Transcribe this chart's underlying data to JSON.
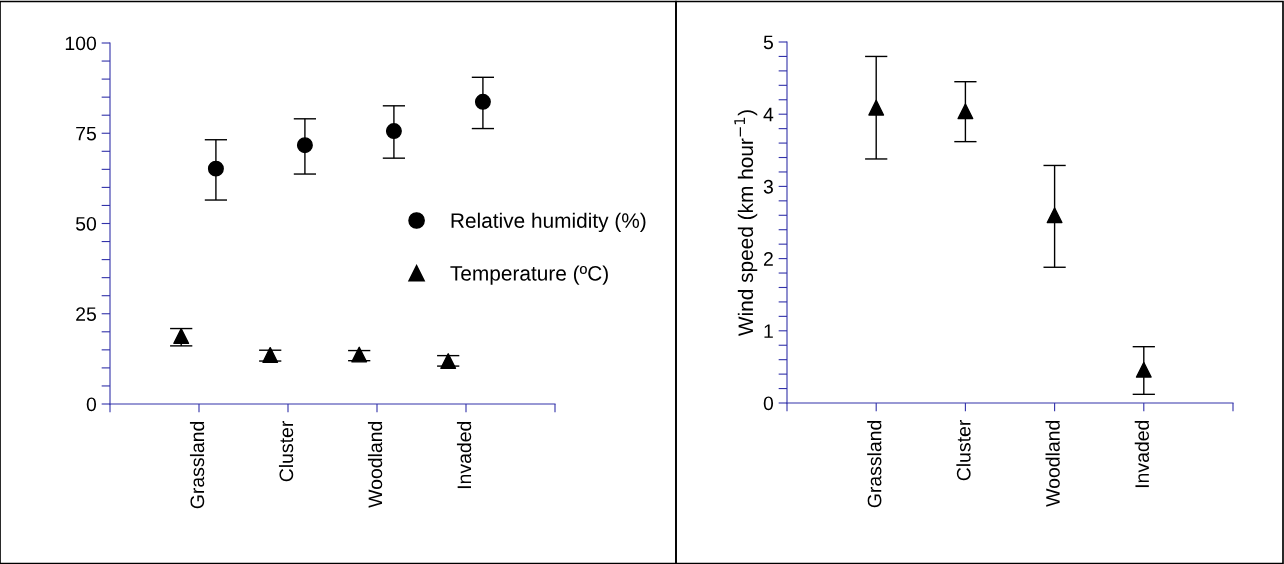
{
  "chart_data": [
    {
      "type": "scatter",
      "categories": [
        "Grassland",
        "Cluster",
        "Woodland",
        "Invaded"
      ],
      "ylim": [
        0,
        100
      ],
      "yticks": [
        0,
        {
          "value": 5,
          "label": null
        },
        {
          "value": 10,
          "label": null
        },
        {
          "value": 15,
          "label": null
        },
        {
          "value": 20,
          "label": null
        },
        25,
        {
          "value": 30,
          "label": null
        },
        {
          "value": 35,
          "label": null
        },
        {
          "value": 40,
          "label": null
        },
        {
          "value": 45,
          "label": null
        },
        50,
        {
          "value": 55,
          "label": null
        },
        {
          "value": 60,
          "label": null
        },
        {
          "value": 65,
          "label": null
        },
        {
          "value": 70,
          "label": null
        },
        75,
        {
          "value": 80,
          "label": null
        },
        {
          "value": 85,
          "label": null
        },
        {
          "value": 90,
          "label": null
        },
        {
          "value": 95,
          "label": null
        },
        100
      ],
      "legend": "right",
      "grid": false,
      "series": [
        {
          "name": "Relative humidity (%)",
          "color": "#000000",
          "marker": "circle",
          "values": [
            65.2,
            71.7,
            75.6,
            83.7
          ],
          "errors": [
            [
              56.5,
              73.2
            ],
            [
              63.7,
              79.0
            ],
            [
              68.1,
              82.6
            ],
            [
              76.3,
              90.5
            ]
          ]
        },
        {
          "name": "Temperature (ºC)",
          "color": "#000000",
          "marker": "triangle",
          "values": [
            18.8,
            13.6,
            13.7,
            11.9
          ],
          "errors": [
            [
              16.1,
              20.9
            ],
            [
              11.9,
              14.9
            ],
            [
              12.0,
              14.8
            ],
            [
              10.5,
              13.4
            ]
          ]
        }
      ]
    },
    {
      "type": "scatter",
      "categories": [
        "Grassland",
        "Cluster",
        "Woodland",
        "Invaded"
      ],
      "ylim": [
        0,
        5
      ],
      "yticks": [
        0,
        {
          "value": 0.2,
          "label": null
        },
        {
          "value": 0.4,
          "label": null
        },
        {
          "value": 0.6,
          "label": null
        },
        {
          "value": 0.8,
          "label": null
        },
        1,
        {
          "value": 1.2,
          "label": null
        },
        {
          "value": 1.4,
          "label": null
        },
        {
          "value": 1.6,
          "label": null
        },
        {
          "value": 1.8,
          "label": null
        },
        2,
        {
          "value": 2.2,
          "label": null
        },
        {
          "value": 2.4,
          "label": null
        },
        {
          "value": 2.6,
          "label": null
        },
        {
          "value": 2.8,
          "label": null
        },
        3,
        {
          "value": 3.2,
          "label": null
        },
        {
          "value": 3.4,
          "label": null
        },
        {
          "value": 3.6,
          "label": null
        },
        {
          "value": 3.8,
          "label": null
        },
        4,
        {
          "value": 4.2,
          "label": null
        },
        {
          "value": 4.4,
          "label": null
        },
        {
          "value": 4.6,
          "label": null
        },
        {
          "value": 4.8,
          "label": null
        },
        5
      ],
      "ylabel": "Wind speed (km hour$^{−1}$)",
      "grid": false,
      "legend": false,
      "series": [
        {
          "color": "#000000",
          "marker": "triangle",
          "values": [
            4.09,
            4.04,
            2.6,
            0.46
          ],
          "errors": [
            [
              3.38,
              4.8
            ],
            [
              3.62,
              4.45
            ],
            [
              1.88,
              3.29
            ],
            [
              0.12,
              0.78
            ]
          ]
        }
      ]
    }
  ]
}
